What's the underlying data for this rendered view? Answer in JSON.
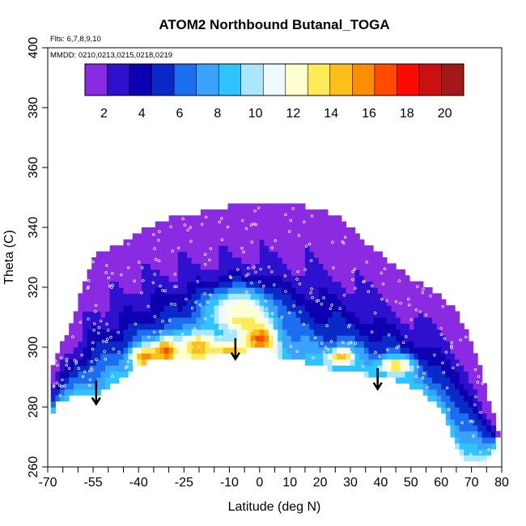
{
  "chart_data": {
    "type": "heatmap",
    "title": "ATOM2 Northbound Butanal_TOGA",
    "annotations": {
      "flights": "Flts: 6,7,8,9,10",
      "dates": "MMDD: 0210,0213,0215,0218,0219"
    },
    "xlabel": "Latitude (deg N)",
    "ylabel": "Theta (C)",
    "xlim": [
      -70,
      80
    ],
    "ylim": [
      260,
      400
    ],
    "x_ticks": [
      -70,
      -55,
      -40,
      -25,
      -10,
      0,
      10,
      20,
      30,
      40,
      50,
      60,
      70,
      80
    ],
    "x_tick_labels": [
      "-70",
      "-55",
      "-40",
      "-25",
      "-10",
      "0",
      "10",
      "20",
      "30",
      "40",
      "50",
      "60",
      "70",
      "80"
    ],
    "x_minor_step": 5,
    "y_ticks": [
      260,
      280,
      300,
      320,
      340,
      360,
      380,
      400
    ],
    "y_tick_labels": [
      "260",
      "280",
      "300",
      "320",
      "340",
      "360",
      "380",
      "400"
    ],
    "colorbar": {
      "range": [
        1,
        21
      ],
      "ticks": [
        2,
        4,
        6,
        8,
        10,
        12,
        14,
        16,
        18,
        20
      ],
      "tick_labels": [
        "2",
        "4",
        "6",
        "8",
        "10",
        "12",
        "14",
        "16",
        "18",
        "20"
      ],
      "colors": [
        "#8a2be2",
        "#2e10cf",
        "#0c00b0",
        "#0a2ac8",
        "#1c6ef0",
        "#3aa2ff",
        "#2fc3ff",
        "#a9e6ff",
        "#eef9ff",
        "#ffffd0",
        "#ffeb5a",
        "#ffbf1a",
        "#ff8d00",
        "#ff4b00",
        "#ff0a00",
        "#cc0f0f",
        "#a31818"
      ]
    },
    "top_boundary": [
      [
        -69,
        292
      ],
      [
        -67,
        298
      ],
      [
        -63,
        306
      ],
      [
        -60,
        314
      ],
      [
        -58,
        322
      ],
      [
        -55,
        330
      ],
      [
        -50,
        333
      ],
      [
        -45,
        335
      ],
      [
        -40,
        338
      ],
      [
        -35,
        341
      ],
      [
        -30,
        343
      ],
      [
        -25,
        344
      ],
      [
        -20,
        345
      ],
      [
        -15,
        346
      ],
      [
        -10,
        347
      ],
      [
        -5,
        348
      ],
      [
        0,
        348
      ],
      [
        5,
        348
      ],
      [
        10,
        348
      ],
      [
        15,
        347
      ],
      [
        20,
        346
      ],
      [
        25,
        344
      ],
      [
        30,
        340
      ],
      [
        35,
        335
      ],
      [
        40,
        331
      ],
      [
        45,
        327
      ],
      [
        50,
        323
      ],
      [
        55,
        320
      ],
      [
        60,
        317
      ],
      [
        65,
        312
      ],
      [
        68,
        306
      ],
      [
        72,
        296
      ],
      [
        74,
        288
      ],
      [
        76,
        282
      ],
      [
        78,
        276
      ],
      [
        79,
        270
      ]
    ],
    "bottom_boundary": [
      [
        -69,
        277
      ],
      [
        -67,
        281
      ],
      [
        -63,
        283
      ],
      [
        -58,
        284
      ],
      [
        -53,
        285
      ],
      [
        -48,
        288
      ],
      [
        -43,
        292
      ],
      [
        -38,
        295
      ],
      [
        -33,
        296
      ],
      [
        -28,
        297
      ],
      [
        -20,
        297
      ],
      [
        -15,
        297
      ],
      [
        -10,
        298
      ],
      [
        -5,
        299
      ],
      [
        0,
        300
      ],
      [
        3,
        299
      ],
      [
        8,
        296
      ],
      [
        15,
        295
      ],
      [
        22,
        293
      ],
      [
        30,
        292
      ],
      [
        38,
        290
      ],
      [
        45,
        289
      ],
      [
        50,
        287
      ],
      [
        55,
        284
      ],
      [
        60,
        279
      ],
      [
        63,
        272
      ],
      [
        65,
        267
      ],
      [
        67,
        263
      ],
      [
        70,
        262
      ],
      [
        74,
        260
      ],
      [
        76,
        262
      ],
      [
        78,
        266
      ],
      [
        79,
        270
      ]
    ],
    "hotspots": [
      {
        "lat": -38,
        "theta": 297,
        "value": 16,
        "spread_lat": 3,
        "spread_theta": 2.5
      },
      {
        "lat": -31,
        "theta": 299,
        "value": 17,
        "spread_lat": 3,
        "spread_theta": 3
      },
      {
        "lat": -20,
        "theta": 300,
        "value": 15,
        "spread_lat": 4,
        "spread_theta": 4
      },
      {
        "lat": -6,
        "theta": 310,
        "value": 17,
        "spread_lat": 4,
        "spread_theta": 3
      },
      {
        "lat": 0,
        "theta": 303,
        "value": 17,
        "spread_lat": 4,
        "spread_theta": 4
      },
      {
        "lat": -10,
        "theta": 299,
        "value": 15,
        "spread_lat": 4,
        "spread_theta": 2
      },
      {
        "lat": 27,
        "theta": 297,
        "value": 15,
        "spread_lat": 3,
        "spread_theta": 2
      },
      {
        "lat": 45,
        "theta": 294,
        "value": 14,
        "spread_lat": 4,
        "spread_theta": 2
      },
      {
        "lat": -7,
        "theta": 313,
        "value": 12,
        "spread_lat": 8,
        "spread_theta": 5
      }
    ],
    "arrows": [
      {
        "lat": -54,
        "theta_from": 289,
        "theta_to": 281
      },
      {
        "lat": -8,
        "theta_from": 303,
        "theta_to": 296
      },
      {
        "lat": 39,
        "theta_from": 293,
        "theta_to": 286
      }
    ]
  }
}
